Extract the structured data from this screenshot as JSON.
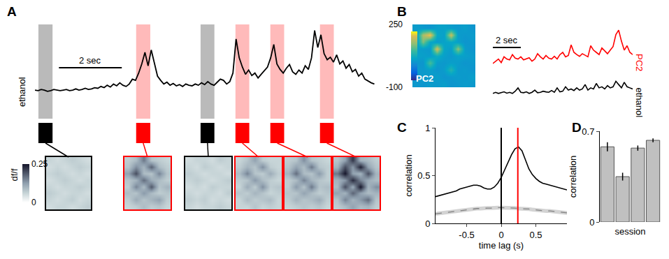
{
  "chart_data": [
    {
      "type": "line",
      "panel": "A",
      "ylabel": "ethanol",
      "color": "black",
      "tick_labels": false,
      "xlim": [
        0,
        10.9
      ],
      "ylim": [
        -0.45,
        1.1
      ],
      "x": [
        0,
        0.1,
        0.2,
        0.3,
        0.4,
        0.5,
        0.6,
        0.7,
        0.8,
        0.9,
        1,
        1.1,
        1.2,
        1.3,
        1.4,
        1.5,
        1.6,
        1.7,
        1.8,
        1.9,
        2,
        2.1,
        2.2,
        2.3,
        2.4,
        2.5,
        2.6,
        2.7,
        2.8,
        2.9,
        3,
        3.1,
        3.2,
        3.3,
        3.4,
        3.5,
        3.6,
        3.7,
        3.8,
        3.9,
        4,
        4.1,
        4.2,
        4.3,
        4.4,
        4.5,
        4.6,
        4.7,
        4.8,
        4.9,
        5,
        5.1,
        5.2,
        5.3,
        5.4,
        5.5,
        5.6,
        5.7,
        5.8,
        5.9,
        6,
        6.1,
        6.2,
        6.3,
        6.4,
        6.5,
        6.6,
        6.7,
        6.8,
        6.9,
        7,
        7.1,
        7.2,
        7.3,
        7.4,
        7.5,
        7.6,
        7.7,
        7.8,
        7.9,
        8,
        8.1,
        8.2,
        8.3,
        8.4,
        8.5,
        8.6,
        8.7,
        8.8,
        8.9,
        9,
        9.1,
        9.2,
        9.3,
        9.4,
        9.5,
        9.6,
        9.7,
        9.8,
        9.9,
        10,
        10.1,
        10.2,
        10.3,
        10.4,
        10.5,
        10.6,
        10.7,
        10.8
      ],
      "values": [
        0.02,
        0.01,
        0.03,
        0.02,
        0.0,
        0.01,
        0.03,
        0.02,
        0.01,
        0.02,
        0.03,
        0.01,
        0.02,
        0.04,
        0.02,
        0.03,
        0.05,
        0.03,
        0.04,
        0.06,
        0.05,
        0.08,
        0.06,
        0.1,
        0.07,
        0.12,
        0.09,
        0.14,
        0.1,
        0.08,
        0.12,
        0.2,
        0.18,
        0.3,
        0.45,
        0.64,
        0.42,
        0.68,
        0.45,
        0.25,
        0.18,
        0.12,
        0.15,
        0.1,
        0.13,
        0.09,
        0.11,
        0.08,
        0.12,
        0.1,
        0.09,
        0.12,
        0.1,
        0.14,
        0.11,
        0.16,
        0.12,
        0.1,
        0.15,
        0.2,
        0.18,
        0.12,
        0.16,
        0.3,
        0.86,
        0.55,
        0.4,
        0.28,
        0.35,
        0.26,
        0.3,
        0.22,
        0.28,
        0.34,
        0.4,
        0.55,
        0.77,
        0.45,
        0.36,
        0.3,
        0.38,
        0.44,
        0.32,
        0.28,
        0.35,
        0.3,
        0.42,
        0.36,
        0.55,
        1.0,
        0.72,
        0.93,
        0.62,
        0.52,
        0.56,
        0.48,
        0.6,
        0.45,
        0.5,
        0.38,
        0.44,
        0.32,
        0.36,
        0.25,
        0.3,
        0.2,
        0.17,
        0.14,
        0.12
      ],
      "scale_bar": {
        "length": 2,
        "label": "2 sec"
      },
      "colorbar": {
        "label": "df/f",
        "range": [
          0,
          0.25
        ],
        "ticks": [
          0,
          0.25
        ]
      },
      "events": [
        {
          "start": 0.11,
          "end": 0.56,
          "color": "black",
          "frame": [
            [
              0.06,
              0.05,
              0.06,
              0.07,
              0.06,
              0.05
            ],
            [
              0.05,
              0.06,
              0.05,
              0.06,
              0.07,
              0.06
            ],
            [
              0.06,
              0.07,
              0.06,
              0.05,
              0.06,
              0.05
            ],
            [
              0.05,
              0.06,
              0.07,
              0.06,
              0.05,
              0.06
            ],
            [
              0.06,
              0.05,
              0.06,
              0.06,
              0.07,
              0.06
            ],
            [
              0.07,
              0.06,
              0.05,
              0.06,
              0.06,
              0.05
            ],
            [
              0.06,
              0.05,
              0.06,
              0.07,
              0.05,
              0.06
            ],
            [
              0.05,
              0.06,
              0.06,
              0.05,
              0.06,
              0.07
            ]
          ]
        },
        {
          "start": 3.22,
          "end": 3.67,
          "color": "red",
          "frame": [
            [
              0.07,
              0.09,
              0.16,
              0.08,
              0.07,
              0.06
            ],
            [
              0.08,
              0.14,
              0.1,
              0.18,
              0.09,
              0.07
            ],
            [
              0.12,
              0.2,
              0.09,
              0.08,
              0.15,
              0.08
            ],
            [
              0.08,
              0.1,
              0.17,
              0.11,
              0.09,
              0.07
            ],
            [
              0.07,
              0.15,
              0.09,
              0.19,
              0.08,
              0.1
            ],
            [
              0.09,
              0.08,
              0.13,
              0.09,
              0.07,
              0.08
            ],
            [
              0.07,
              0.11,
              0.08,
              0.1,
              0.12,
              0.07
            ],
            [
              0.06,
              0.07,
              0.09,
              0.07,
              0.08,
              0.06
            ]
          ]
        },
        {
          "start": 5.27,
          "end": 5.71,
          "color": "black",
          "frame": [
            [
              0.05,
              0.06,
              0.06,
              0.05,
              0.07,
              0.06
            ],
            [
              0.06,
              0.05,
              0.07,
              0.06,
              0.05,
              0.06
            ],
            [
              0.07,
              0.06,
              0.05,
              0.06,
              0.06,
              0.05
            ],
            [
              0.06,
              0.07,
              0.06,
              0.05,
              0.06,
              0.07
            ],
            [
              0.05,
              0.06,
              0.05,
              0.07,
              0.06,
              0.06
            ],
            [
              0.06,
              0.05,
              0.06,
              0.06,
              0.05,
              0.07
            ],
            [
              0.07,
              0.06,
              0.07,
              0.05,
              0.06,
              0.05
            ],
            [
              0.06,
              0.05,
              0.06,
              0.06,
              0.07,
              0.06
            ]
          ]
        },
        {
          "start": 6.38,
          "end": 6.82,
          "color": "red",
          "frame": [
            [
              0.06,
              0.08,
              0.12,
              0.07,
              0.06,
              0.06
            ],
            [
              0.07,
              0.1,
              0.08,
              0.14,
              0.07,
              0.06
            ],
            [
              0.09,
              0.15,
              0.08,
              0.07,
              0.11,
              0.07
            ],
            [
              0.07,
              0.08,
              0.13,
              0.09,
              0.07,
              0.06
            ],
            [
              0.06,
              0.11,
              0.07,
              0.14,
              0.07,
              0.08
            ],
            [
              0.08,
              0.07,
              0.1,
              0.08,
              0.06,
              0.07
            ],
            [
              0.06,
              0.09,
              0.07,
              0.08,
              0.09,
              0.06
            ],
            [
              0.06,
              0.06,
              0.08,
              0.06,
              0.07,
              0.06
            ]
          ]
        },
        {
          "start": 7.49,
          "end": 7.93,
          "color": "red",
          "frame": [
            [
              0.07,
              0.08,
              0.14,
              0.08,
              0.07,
              0.06
            ],
            [
              0.08,
              0.12,
              0.09,
              0.16,
              0.08,
              0.07
            ],
            [
              0.1,
              0.17,
              0.09,
              0.08,
              0.13,
              0.07
            ],
            [
              0.07,
              0.09,
              0.15,
              0.1,
              0.08,
              0.07
            ],
            [
              0.07,
              0.13,
              0.08,
              0.16,
              0.08,
              0.09
            ],
            [
              0.08,
              0.08,
              0.12,
              0.09,
              0.07,
              0.08
            ],
            [
              0.07,
              0.1,
              0.08,
              0.09,
              0.11,
              0.07
            ],
            [
              0.06,
              0.07,
              0.08,
              0.07,
              0.08,
              0.06
            ]
          ]
        },
        {
          "start": 9.07,
          "end": 9.51,
          "color": "red",
          "frame": [
            [
              0.08,
              0.12,
              0.22,
              0.1,
              0.09,
              0.07
            ],
            [
              0.1,
              0.2,
              0.13,
              0.24,
              0.12,
              0.08
            ],
            [
              0.16,
              0.25,
              0.12,
              0.1,
              0.2,
              0.1
            ],
            [
              0.1,
              0.13,
              0.23,
              0.15,
              0.11,
              0.09
            ],
            [
              0.09,
              0.2,
              0.11,
              0.25,
              0.1,
              0.14
            ],
            [
              0.12,
              0.1,
              0.18,
              0.12,
              0.09,
              0.1
            ],
            [
              0.08,
              0.15,
              0.1,
              0.13,
              0.17,
              0.08
            ],
            [
              0.07,
              0.09,
              0.12,
              0.09,
              0.1,
              0.07
            ]
          ]
        }
      ]
    },
    {
      "type": "heatmap",
      "panel": "B",
      "label": "PC2",
      "cells": [
        [
          40,
          35,
          30,
          45,
          50,
          40,
          35,
          45,
          30
        ],
        [
          35,
          180,
          230,
          60,
          45,
          200,
          40,
          35,
          40
        ],
        [
          30,
          150,
          60,
          40,
          50,
          60,
          45,
          30,
          35
        ],
        [
          45,
          40,
          35,
          210,
          55,
          40,
          160,
          40,
          30
        ],
        [
          50,
          45,
          40,
          70,
          45,
          35,
          50,
          45,
          40
        ],
        [
          35,
          30,
          120,
          40,
          35,
          45,
          40,
          30,
          35
        ],
        [
          40,
          35,
          45,
          30,
          40,
          90,
          35,
          40,
          30
        ],
        [
          30,
          40,
          35,
          45,
          30,
          35,
          40,
          35,
          45
        ],
        [
          35,
          30,
          40,
          35,
          45,
          30,
          35,
          40,
          35
        ]
      ],
      "colorbar": {
        "range": [
          -100,
          250
        ],
        "ticks": [
          -100,
          250
        ]
      }
    },
    {
      "type": "line",
      "tick_labels": false,
      "xlim": [
        0,
        10
      ],
      "scale_bar": {
        "length": 2,
        "label": "2 sec"
      },
      "x": [
        0,
        0.2,
        0.4,
        0.6,
        0.8,
        1,
        1.2,
        1.4,
        1.6,
        1.8,
        2,
        2.2,
        2.4,
        2.6,
        2.8,
        3,
        3.2,
        3.4,
        3.6,
        3.8,
        4,
        4.2,
        4.4,
        4.6,
        4.8,
        5,
        5.2,
        5.4,
        5.6,
        5.8,
        6,
        6.2,
        6.4,
        6.6,
        6.8,
        7,
        7.2,
        7.4,
        7.6,
        7.8,
        8,
        8.2,
        8.4,
        8.6,
        8.8,
        9,
        9.2,
        9.4,
        9.6,
        9.8,
        10
      ],
      "series": [
        {
          "name": "PC2",
          "color": "red",
          "ylim": [
            -0.1,
            1
          ],
          "values": [
            0.2,
            0.25,
            0.3,
            0.22,
            0.35,
            0.3,
            0.28,
            0.4,
            0.32,
            0.3,
            0.35,
            0.28,
            0.3,
            0.33,
            0.25,
            0.3,
            0.42,
            0.35,
            0.3,
            0.38,
            0.32,
            0.3,
            0.36,
            0.3,
            0.4,
            0.45,
            0.35,
            0.38,
            0.62,
            0.45,
            0.4,
            0.36,
            0.42,
            0.38,
            0.35,
            0.6,
            0.5,
            0.45,
            0.4,
            0.55,
            0.48,
            0.42,
            0.5,
            0.58,
            0.85,
            0.95,
            0.7,
            0.5,
            0.6,
            0.45,
            0.4
          ]
        },
        {
          "name": "ethanol",
          "color": "black",
          "ylim": [
            -0.05,
            0.8
          ],
          "values": [
            0.05,
            0.1,
            0.05,
            0.08,
            0.12,
            0.06,
            0.1,
            0.05,
            0.15,
            0.3,
            0.1,
            0.08,
            0.12,
            0.05,
            0.1,
            0.2,
            0.08,
            0.1,
            0.15,
            0.12,
            0.1,
            0.18,
            0.1,
            0.3,
            0.12,
            0.15,
            0.35,
            0.2,
            0.25,
            0.18,
            0.3,
            0.2,
            0.25,
            0.45,
            0.2,
            0.3,
            0.25,
            0.5,
            0.3,
            0.35,
            0.25,
            0.4,
            0.3,
            0.35,
            0.6,
            0.45,
            0.3,
            0.55,
            0.35,
            0.3,
            0.25
          ]
        }
      ]
    },
    {
      "type": "line",
      "panel": "C",
      "color": "black",
      "xlabel": "time lag (s)",
      "ylabel": "correlation",
      "xlim": [
        -0.95,
        0.95
      ],
      "ylim": [
        0,
        1
      ],
      "xticks": [
        -0.5,
        0,
        0.5
      ],
      "yticks": [
        0,
        0.5,
        1
      ],
      "x": [
        -0.95,
        -0.9,
        -0.85,
        -0.8,
        -0.75,
        -0.7,
        -0.65,
        -0.6,
        -0.55,
        -0.5,
        -0.45,
        -0.4,
        -0.35,
        -0.3,
        -0.25,
        -0.2,
        -0.15,
        -0.1,
        -0.05,
        0,
        0.05,
        0.1,
        0.15,
        0.2,
        0.25,
        0.3,
        0.35,
        0.4,
        0.45,
        0.5,
        0.55,
        0.6,
        0.65,
        0.7,
        0.75,
        0.8,
        0.85,
        0.9,
        0.95
      ],
      "values": [
        0.28,
        0.29,
        0.3,
        0.31,
        0.32,
        0.33,
        0.34,
        0.36,
        0.37,
        0.38,
        0.39,
        0.4,
        0.4,
        0.39,
        0.37,
        0.36,
        0.36,
        0.38,
        0.42,
        0.48,
        0.56,
        0.64,
        0.72,
        0.78,
        0.8,
        0.76,
        0.66,
        0.57,
        0.51,
        0.47,
        0.44,
        0.42,
        0.41,
        0.4,
        0.39,
        0.38,
        0.37,
        0.36,
        0.35
      ],
      "shuffle": {
        "color": "gray",
        "line_style": "dashed",
        "error": 0.02,
        "values": [
          0.1,
          0.105,
          0.11,
          0.115,
          0.12,
          0.125,
          0.13,
          0.135,
          0.14,
          0.145,
          0.15,
          0.15,
          0.155,
          0.155,
          0.16,
          0.16,
          0.16,
          0.165,
          0.165,
          0.165,
          0.165,
          0.16,
          0.16,
          0.16,
          0.155,
          0.155,
          0.15,
          0.15,
          0.145,
          0.14,
          0.14,
          0.135,
          0.13,
          0.13,
          0.125,
          0.12,
          0.12,
          0.115,
          0.11
        ]
      },
      "vlines": [
        {
          "x": 0,
          "color": "black"
        },
        {
          "x": 0.24,
          "color": "red"
        }
      ]
    },
    {
      "type": "bar",
      "panel": "D",
      "xlabel": "session",
      "ylabel": "correlation",
      "tick_labels": "y",
      "categories": [
        null,
        null,
        null,
        null
      ],
      "values": [
        0.58,
        0.35,
        0.57,
        0.63
      ],
      "errors": [
        0.035,
        0.03,
        0.02,
        0.015
      ],
      "color": "#c0c0c0",
      "ylim": [
        0,
        0.7
      ],
      "yticks": [
        0,
        0.7
      ]
    }
  ]
}
